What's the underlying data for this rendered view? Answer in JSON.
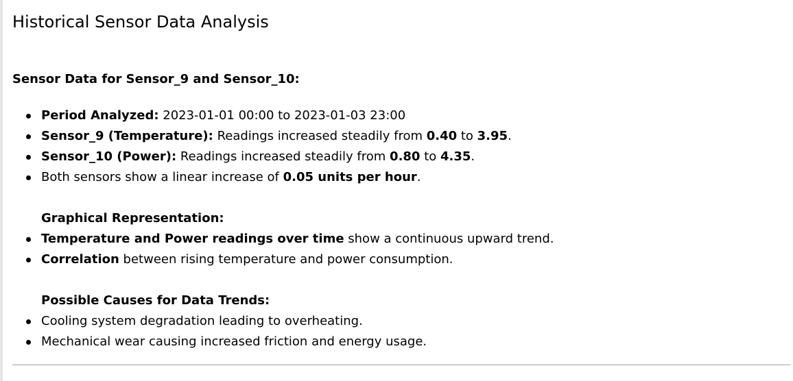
{
  "page": {
    "title": "Historical Sensor Data Analysis",
    "section_heading": "Sensor Data for Sensor_9 and Sensor_10:"
  },
  "summary": {
    "period": {
      "label": "Period Analyzed:",
      "text": " 2023-01-01 00:00 to 2023-01-03 23:00"
    },
    "sensor_9": {
      "label": "Sensor_9 (Temperature):",
      "text_before": " Readings increased steadily from ",
      "start_value": "0.40",
      "text_middle": " to ",
      "end_value": "3.95",
      "text_after": "."
    },
    "sensor_10": {
      "label": "Sensor_10 (Power):",
      "text_before": " Readings increased steadily from ",
      "start_value": "0.80",
      "text_middle": " to ",
      "end_value": "4.35",
      "text_after": "."
    },
    "linear": {
      "text_before": "Both sensors show a linear increase of ",
      "rate": "0.05 units per hour",
      "text_after": "."
    }
  },
  "graphical": {
    "heading": "Graphical Representation:",
    "item1_bold": "Temperature and Power readings over time",
    "item1_text": " show a continuous upward trend.",
    "item2_bold": "Correlation",
    "item2_text": " between rising temperature and power consumption."
  },
  "causes": {
    "heading": "Possible Causes for Data Trends:",
    "items": [
      "Cooling system degradation leading to overheating.",
      "Mechanical wear causing increased friction and energy usage."
    ]
  }
}
